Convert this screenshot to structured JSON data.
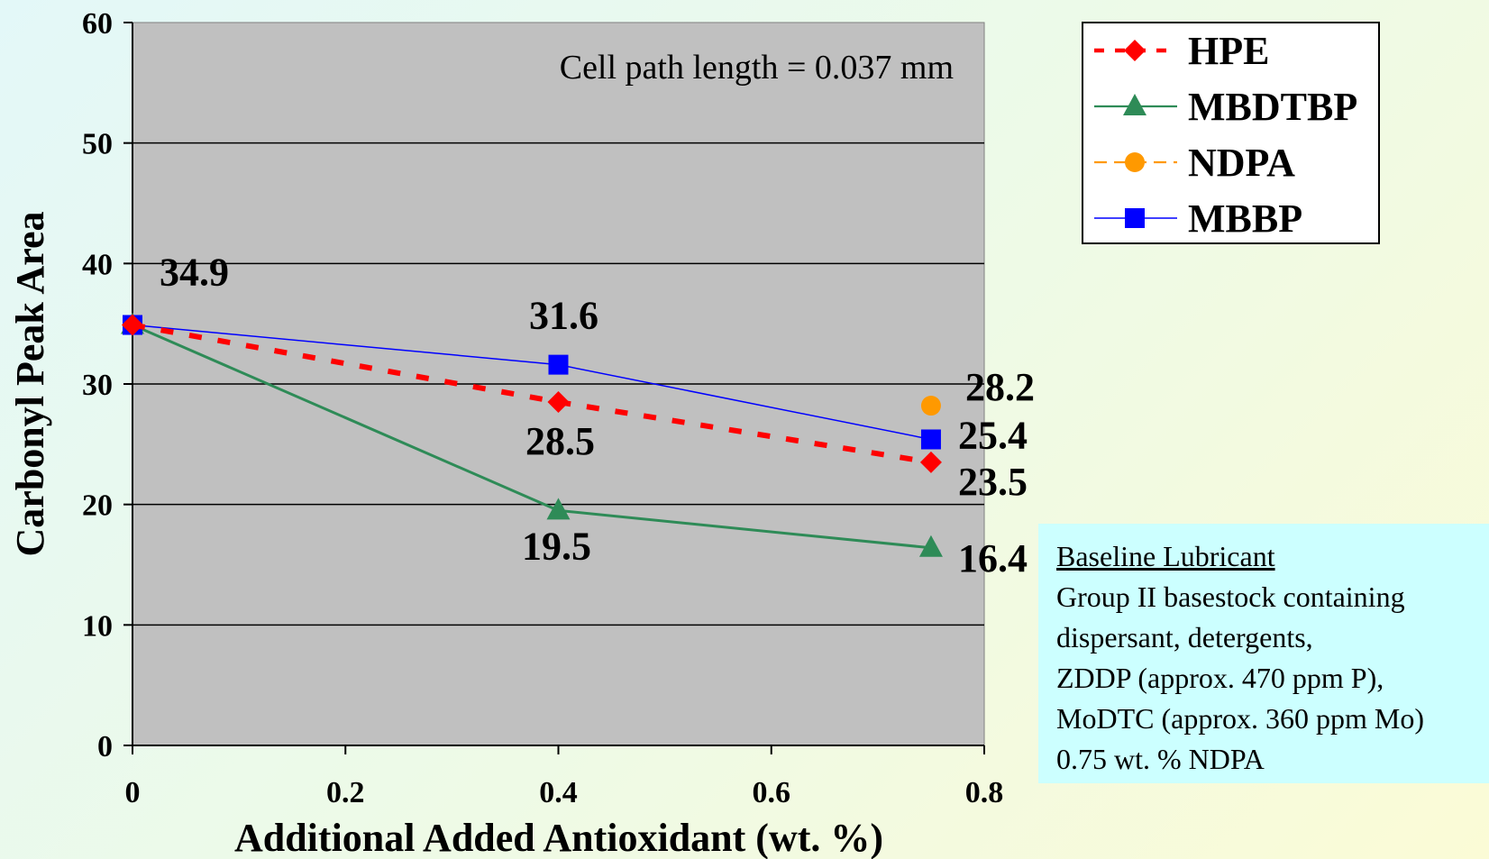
{
  "chart_data": {
    "type": "line",
    "xlabel": "Additional Added Antioxidant (wt. %)",
    "ylabel": "Carbonyl Peak Area",
    "xlim": [
      0,
      0.8
    ],
    "ylim": [
      0,
      60
    ],
    "x_ticks": [
      "0",
      "0.2",
      "0.4",
      "0.6",
      "0.8"
    ],
    "y_ticks": [
      "0",
      "10",
      "20",
      "30",
      "40",
      "50",
      "60"
    ],
    "grid": "horizontal",
    "legend_position": "top-right, outside plot",
    "annotation": "Cell path length = 0.037 mm",
    "series": [
      {
        "name": "HPE",
        "color": "#ff0000",
        "marker": "diamond",
        "line": "dashed",
        "points": [
          {
            "x": 0,
            "y": 34.9
          },
          {
            "x": 0.4,
            "y": 28.5,
            "label": "28.5"
          },
          {
            "x": 0.75,
            "y": 23.5,
            "label": "23.5"
          }
        ]
      },
      {
        "name": "MBDTBP",
        "color": "#2e8b57",
        "marker": "triangle",
        "line": "solid",
        "points": [
          {
            "x": 0,
            "y": 34.9
          },
          {
            "x": 0.4,
            "y": 19.5,
            "label": "19.5"
          },
          {
            "x": 0.75,
            "y": 16.4,
            "label": "16.4"
          }
        ]
      },
      {
        "name": "NDPA",
        "color": "#ff9900",
        "marker": "circle",
        "line": "dashed",
        "points": [
          {
            "x": 0.75,
            "y": 28.2,
            "label": "28.2"
          }
        ]
      },
      {
        "name": "MBBP",
        "color": "#0000ff",
        "marker": "square",
        "line": "solid",
        "points": [
          {
            "x": 0,
            "y": 34.9,
            "label": "34.9"
          },
          {
            "x": 0.4,
            "y": 31.6,
            "label": "31.6"
          },
          {
            "x": 0.75,
            "y": 25.4,
            "label": "25.4"
          }
        ]
      }
    ]
  },
  "note": {
    "title": "Baseline Lubricant",
    "lines": [
      "Group II basestock containing",
      "dispersant, detergents,",
      "ZDDP (approx. 470 ppm P),",
      "MoDTC (approx. 360 ppm Mo)",
      "0.75 wt. % NDPA"
    ]
  }
}
